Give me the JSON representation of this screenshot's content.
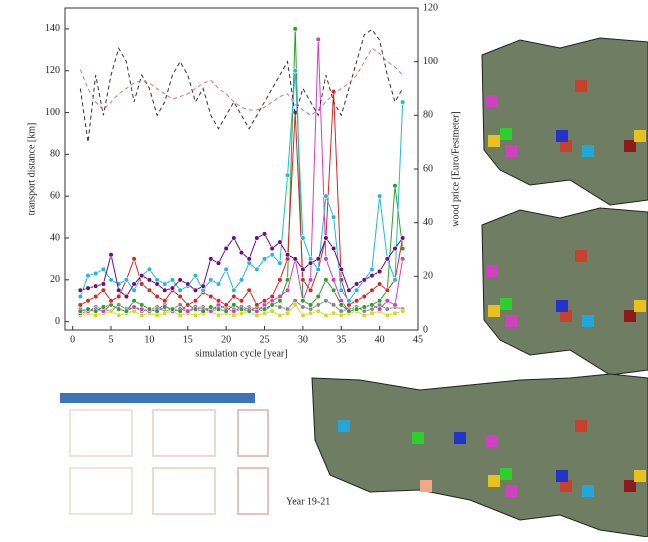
{
  "chart_data": {
    "type": "line",
    "x_label": "simulation cycle [year]",
    "y_label": "transport distance [km]",
    "y2_label": "wood price [Euro/Festmeter]",
    "x": [
      1,
      2,
      3,
      4,
      5,
      6,
      7,
      8,
      9,
      10,
      11,
      12,
      13,
      14,
      15,
      16,
      17,
      18,
      19,
      20,
      21,
      22,
      23,
      24,
      25,
      26,
      27,
      28,
      29,
      30,
      31,
      32,
      33,
      34,
      35,
      36,
      37,
      38,
      39,
      40,
      41,
      42,
      43
    ],
    "xlim": [
      -1,
      45
    ],
    "xticks": [
      0,
      5,
      10,
      15,
      20,
      25,
      30,
      35,
      40,
      45
    ],
    "ylim": [
      -4,
      150
    ],
    "yticks": [
      0,
      20,
      40,
      60,
      80,
      100,
      120,
      140
    ],
    "y2lim": [
      0,
      120
    ],
    "y2ticks": [
      0,
      20,
      40,
      60,
      80,
      100,
      120
    ],
    "series": [
      {
        "color": "#888888",
        "values": [
          6,
          5,
          7,
          6,
          5,
          8,
          6,
          7,
          5,
          6,
          7,
          5,
          6,
          8,
          5,
          6,
          7,
          5,
          6,
          8,
          6,
          5,
          7,
          6,
          5,
          8,
          7,
          6,
          10,
          7,
          6,
          8,
          10,
          8,
          5,
          6,
          7,
          5,
          6,
          8,
          6,
          7,
          6
        ]
      },
      {
        "color": "#d8d820",
        "values": [
          3,
          4,
          3,
          4,
          5,
          3,
          4,
          5,
          3,
          4,
          3,
          4,
          5,
          3,
          4,
          3,
          4,
          5,
          3,
          4,
          3,
          4,
          5,
          3,
          4,
          5,
          3,
          4,
          8,
          3,
          4,
          5,
          3,
          4,
          3,
          4,
          5,
          3,
          4,
          5,
          3,
          4,
          5
        ]
      },
      {
        "color": "#d040c0",
        "values": [
          4,
          5,
          6,
          5,
          8,
          6,
          5,
          7,
          6,
          5,
          6,
          8,
          5,
          6,
          5,
          7,
          6,
          5,
          8,
          6,
          5,
          7,
          6,
          5,
          8,
          10,
          12,
          15,
          30,
          10,
          20,
          135,
          30,
          20,
          10,
          5,
          6,
          7,
          8,
          6,
          10,
          8,
          30
        ]
      },
      {
        "color": "#2ca02c",
        "values": [
          5,
          6,
          5,
          7,
          8,
          6,
          5,
          10,
          8,
          6,
          5,
          7,
          6,
          5,
          8,
          6,
          5,
          7,
          6,
          5,
          8,
          6,
          5,
          7,
          6,
          8,
          10,
          20,
          140,
          10,
          8,
          12,
          20,
          15,
          8,
          5,
          6,
          7,
          8,
          10,
          15,
          65,
          35
        ]
      },
      {
        "color": "#d62728",
        "values": [
          8,
          10,
          12,
          15,
          10,
          12,
          20,
          30,
          18,
          15,
          12,
          10,
          15,
          12,
          8,
          10,
          14,
          12,
          10,
          8,
          12,
          10,
          15,
          8,
          10,
          12,
          20,
          30,
          100,
          20,
          15,
          25,
          40,
          110,
          20,
          8,
          10,
          12,
          15,
          18,
          15,
          20,
          40
        ]
      },
      {
        "color": "#22b8d8",
        "values": [
          12,
          22,
          23,
          25,
          20,
          18,
          20,
          15,
          22,
          25,
          20,
          18,
          20,
          15,
          17,
          22,
          15,
          20,
          18,
          25,
          15,
          20,
          28,
          25,
          30,
          32,
          28,
          70,
          120,
          40,
          30,
          25,
          60,
          50,
          15,
          10,
          15,
          20,
          25,
          60,
          30,
          20,
          105
        ]
      },
      {
        "color": "#6a0d83",
        "values": [
          15,
          16,
          17,
          18,
          32,
          15,
          12,
          18,
          22,
          20,
          18,
          15,
          16,
          20,
          18,
          15,
          17,
          30,
          28,
          35,
          40,
          33,
          30,
          40,
          42,
          35,
          38,
          32,
          30,
          25,
          28,
          30,
          40,
          35,
          25,
          15,
          18,
          20,
          22,
          24,
          30,
          35,
          40
        ]
      },
      {
        "color": "#333333",
        "dashed": true,
        "axis": "y2",
        "values": [
          90,
          70,
          95,
          80,
          95,
          105,
          100,
          85,
          95,
          90,
          80,
          85,
          95,
          100,
          95,
          85,
          90,
          80,
          75,
          80,
          85,
          80,
          75,
          80,
          85,
          90,
          95,
          100,
          80,
          90,
          85,
          80,
          95,
          85,
          80,
          90,
          100,
          110,
          112,
          108,
          95,
          85,
          90
        ]
      },
      {
        "color": "#e07080",
        "dashed": true,
        "axis": "y2",
        "values": [
          97,
          90,
          85,
          82,
          85,
          88,
          90,
          92,
          93,
          92,
          90,
          88,
          86,
          87,
          88,
          90,
          92,
          93,
          90,
          88,
          85,
          83,
          82,
          82,
          83,
          85,
          87,
          88,
          84,
          82,
          80,
          82,
          85,
          88,
          90,
          92,
          95,
          100,
          105,
          103,
          100,
          98,
          95
        ]
      }
    ]
  },
  "caption": "Year 19-21"
}
